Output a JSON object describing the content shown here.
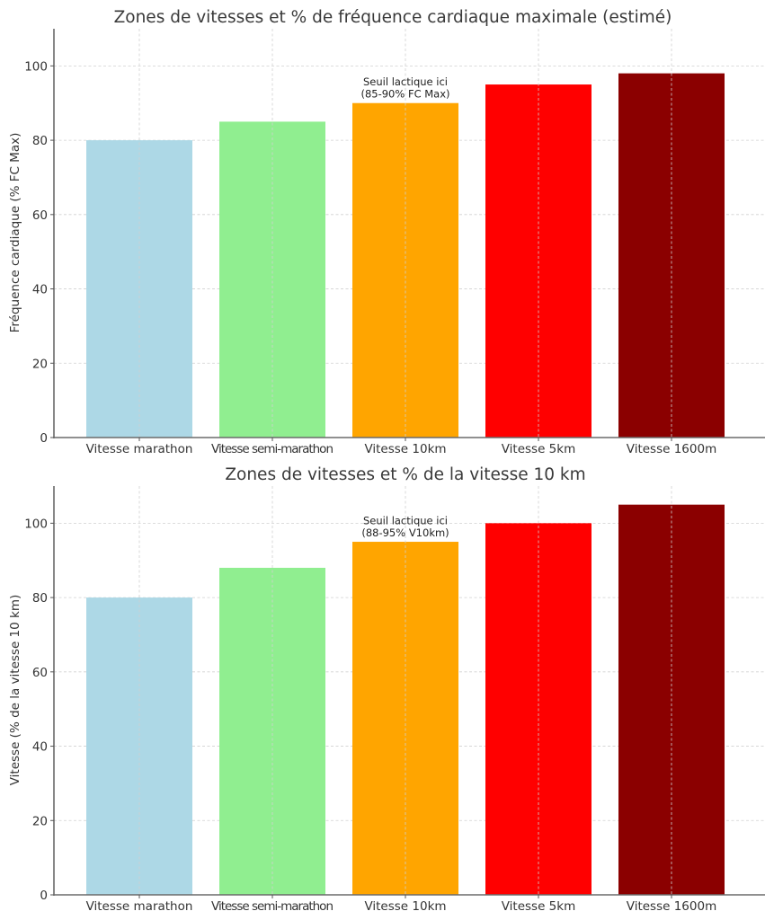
{
  "chart_data": [
    {
      "type": "bar",
      "title": "Zones de vitesses et % de fréquence cardiaque maximale (estimé)",
      "xlabel": "",
      "ylabel": "Fréquence cardiaque (% FC Max)",
      "categories": [
        "Vitesse marathon",
        "Vitesse semi-marathon",
        "Vitesse 10km",
        "Vitesse 5km",
        "Vitesse 1600m"
      ],
      "values": [
        80,
        85,
        90,
        95,
        98
      ],
      "colors": [
        "#add8e6",
        "#90ee90",
        "#ffa500",
        "#ff0000",
        "#8b0000"
      ],
      "ylim": [
        0,
        110
      ],
      "yticks": [
        0,
        20,
        40,
        60,
        80,
        100
      ],
      "grid": true,
      "annotation": {
        "category_index": 2,
        "lines": [
          "Seuil lactique ici",
          "(85-90% FC Max)"
        ]
      }
    },
    {
      "type": "bar",
      "title": "Zones de vitesses et % de la vitesse 10 km",
      "xlabel": "",
      "ylabel": "Vitesse (% de la vitesse 10 km)",
      "categories": [
        "Vitesse marathon",
        "Vitesse semi-marathon",
        "Vitesse 10km",
        "Vitesse 5km",
        "Vitesse 1600m"
      ],
      "values": [
        80,
        88,
        95,
        100,
        105
      ],
      "colors": [
        "#add8e6",
        "#90ee90",
        "#ffa500",
        "#ff0000",
        "#8b0000"
      ],
      "ylim": [
        0,
        110
      ],
      "yticks": [
        0,
        20,
        40,
        60,
        80,
        100
      ],
      "grid": true,
      "annotation": {
        "category_index": 2,
        "lines": [
          "Seuil lactique ici",
          "(88-95% V10km)"
        ]
      }
    }
  ]
}
